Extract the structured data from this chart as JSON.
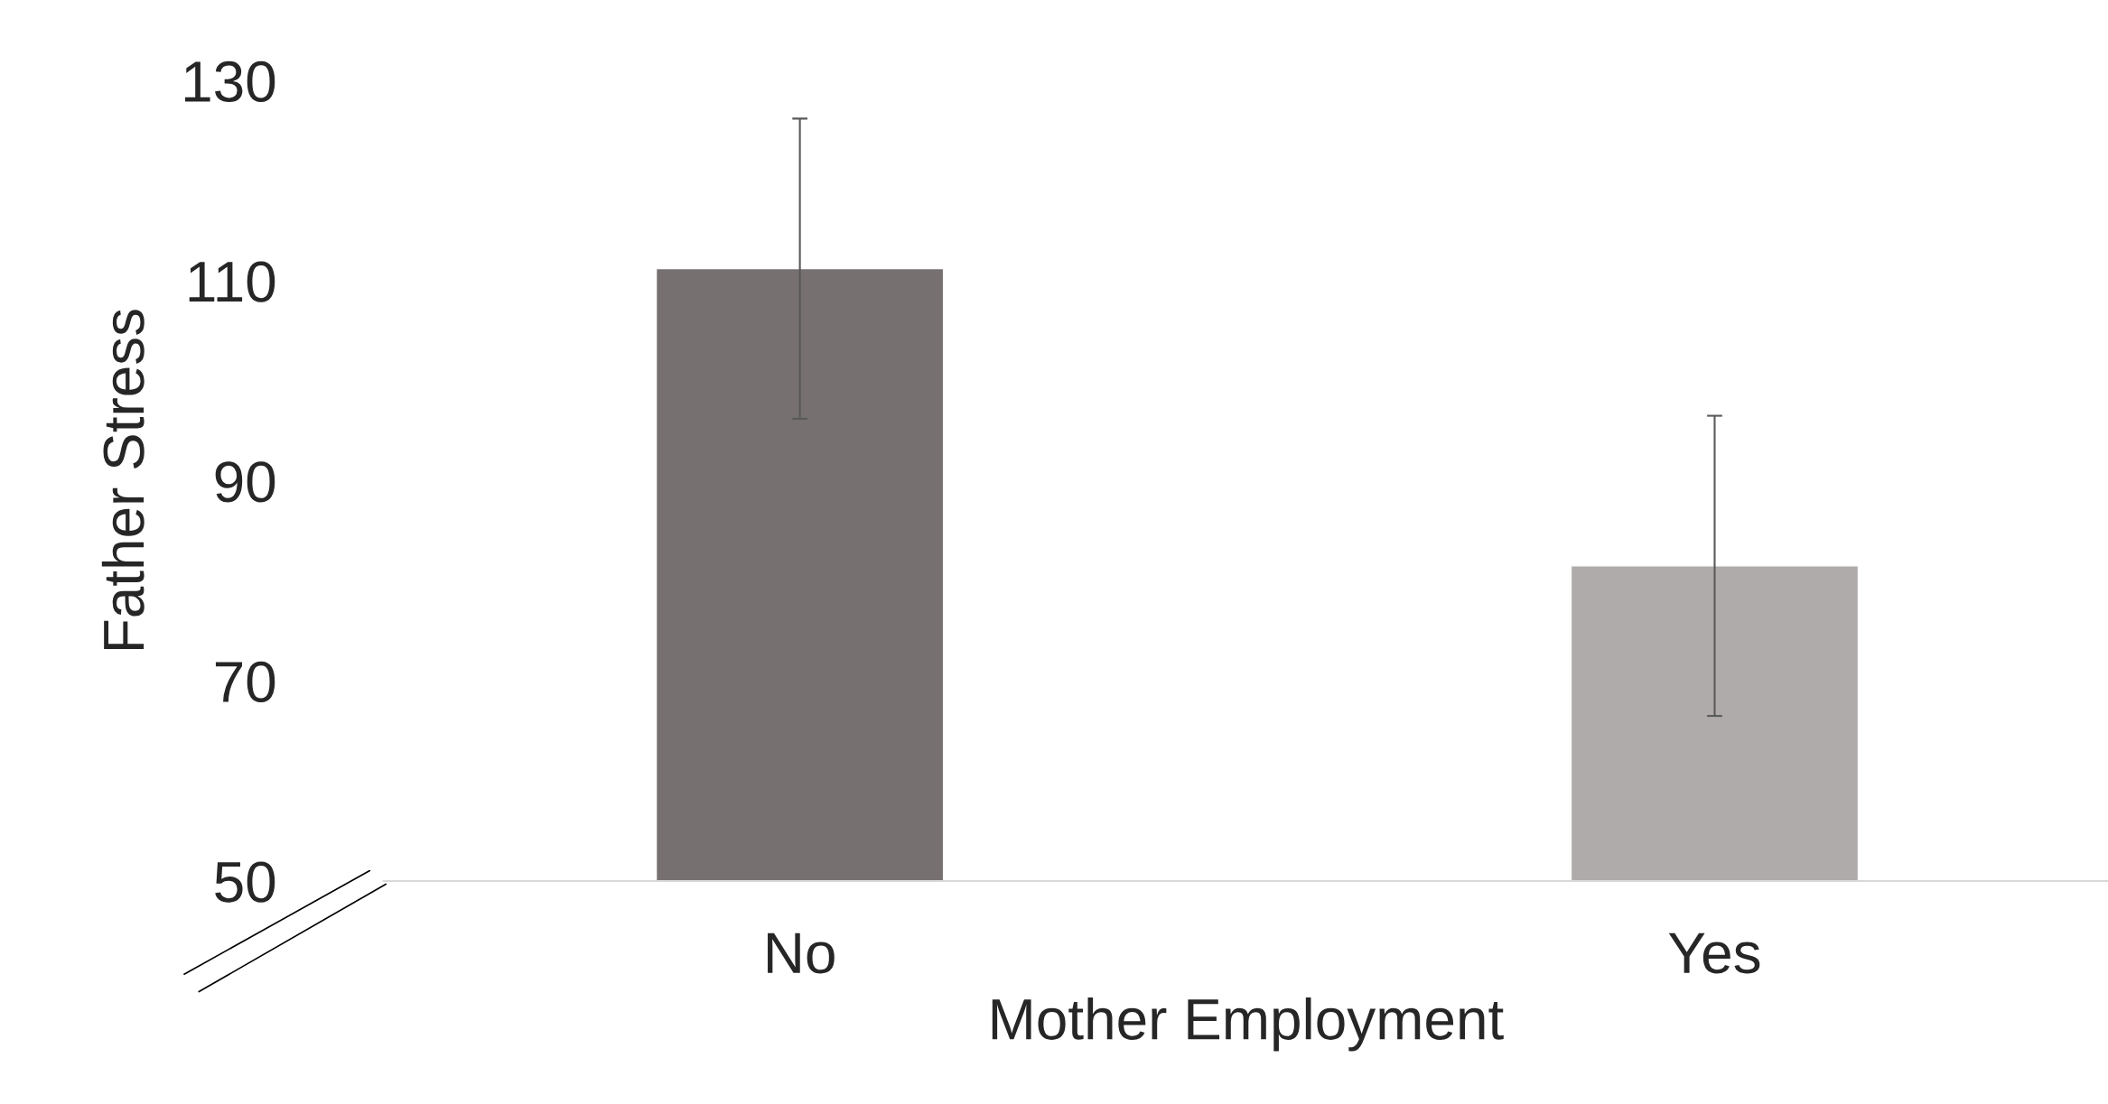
{
  "chart_data": {
    "type": "bar",
    "xlabel": "Mother Employment",
    "ylabel": "Father Stress",
    "categories": [
      "No",
      "Yes"
    ],
    "values": [
      111.2,
      81.5
    ],
    "colors": [
      "#767170",
      "#afabaa"
    ],
    "errors": [
      15,
      15
    ],
    "ylim": [
      50,
      130
    ],
    "yticks": [
      50,
      70,
      90,
      110,
      130
    ],
    "grid": false,
    "legend": false
  }
}
